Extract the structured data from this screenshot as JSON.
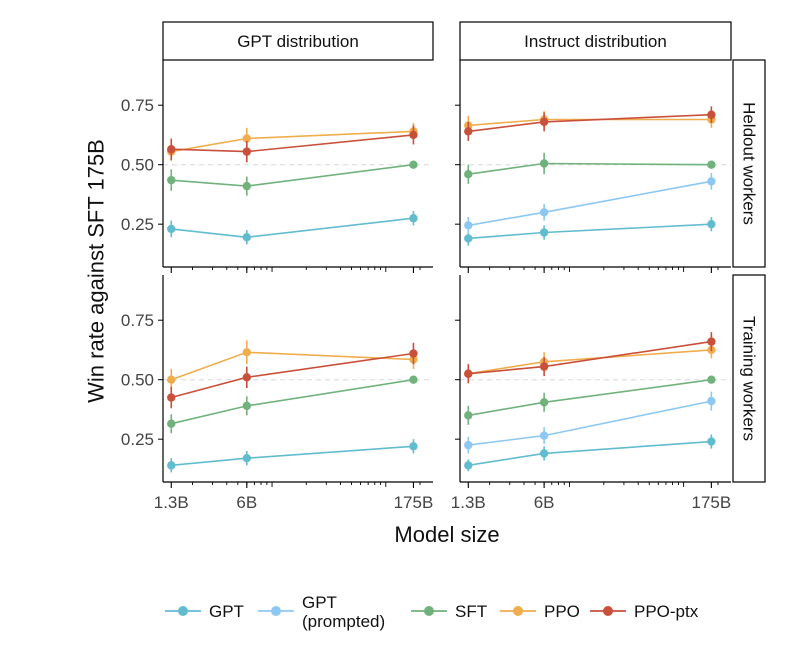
{
  "chart_data": {
    "type": "line",
    "ylabel": "Win rate against SFT 175B",
    "xlabel": "Model size",
    "x_ticks": [
      "1.3B",
      "6B",
      "175B"
    ],
    "x_values": [
      1.3,
      6,
      175
    ],
    "x_scale": "log",
    "xlim": [
      1.1,
      260
    ],
    "ylim": [
      0.07,
      0.94
    ],
    "y_ticks": [
      0.25,
      0.5,
      0.75
    ],
    "y_tick_labels": [
      "0.25",
      "0.50",
      "0.75"
    ],
    "reference_line": 0.5,
    "columns": [
      "GPT distribution",
      "Instruct distribution"
    ],
    "rows": [
      "Heldout workers",
      "Training workers"
    ],
    "legend": [
      {
        "name": "GPT",
        "color": "#62BCCF"
      },
      {
        "name": "GPT\n(prompted)",
        "color": "#8DC8F2"
      },
      {
        "name": "SFT",
        "color": "#71B27C"
      },
      {
        "name": "PPO",
        "color": "#F0AD4E"
      },
      {
        "name": "PPO-ptx",
        "color": "#C9503A"
      }
    ],
    "panels": [
      {
        "row": "Heldout workers",
        "column": "GPT distribution",
        "series": [
          {
            "name": "GPT",
            "values": [
              0.23,
              0.195,
              0.275
            ],
            "err": [
              0.035,
              0.03,
              0.03
            ]
          },
          {
            "name": "SFT",
            "values": [
              0.435,
              0.41,
              0.5
            ],
            "err": [
              0.045,
              0.04,
              0.0
            ]
          },
          {
            "name": "PPO",
            "values": [
              0.555,
              0.61,
              0.64
            ],
            "err": [
              0.04,
              0.045,
              0.035
            ]
          },
          {
            "name": "PPO-ptx",
            "values": [
              0.565,
              0.555,
              0.625
            ],
            "err": [
              0.045,
              0.045,
              0.04
            ]
          }
        ]
      },
      {
        "row": "Heldout workers",
        "column": "Instruct distribution",
        "series": [
          {
            "name": "GPT",
            "values": [
              0.19,
              0.215,
              0.25
            ],
            "err": [
              0.03,
              0.03,
              0.03
            ]
          },
          {
            "name": "GPT\n(prompted)",
            "values": [
              0.245,
              0.3,
              0.43
            ],
            "err": [
              0.035,
              0.035,
              0.035
            ]
          },
          {
            "name": "SFT",
            "values": [
              0.46,
              0.505,
              0.5
            ],
            "err": [
              0.04,
              0.045,
              0.0
            ]
          },
          {
            "name": "PPO",
            "values": [
              0.665,
              0.69,
              0.69
            ],
            "err": [
              0.04,
              0.035,
              0.035
            ]
          },
          {
            "name": "PPO-ptx",
            "values": [
              0.64,
              0.68,
              0.71
            ],
            "err": [
              0.04,
              0.04,
              0.035
            ]
          }
        ]
      },
      {
        "row": "Training workers",
        "column": "GPT distribution",
        "series": [
          {
            "name": "GPT",
            "values": [
              0.14,
              0.17,
              0.22
            ],
            "err": [
              0.03,
              0.03,
              0.03
            ]
          },
          {
            "name": "SFT",
            "values": [
              0.315,
              0.39,
              0.5
            ],
            "err": [
              0.04,
              0.04,
              0.0
            ]
          },
          {
            "name": "PPO",
            "values": [
              0.5,
              0.615,
              0.585
            ],
            "err": [
              0.045,
              0.05,
              0.04
            ]
          },
          {
            "name": "PPO-ptx",
            "values": [
              0.425,
              0.51,
              0.61
            ],
            "err": [
              0.045,
              0.045,
              0.045
            ]
          }
        ]
      },
      {
        "row": "Training workers",
        "column": "Instruct distribution",
        "series": [
          {
            "name": "GPT",
            "values": [
              0.14,
              0.19,
              0.24
            ],
            "err": [
              0.025,
              0.03,
              0.03
            ]
          },
          {
            "name": "GPT\n(prompted)",
            "values": [
              0.225,
              0.265,
              0.41
            ],
            "err": [
              0.035,
              0.035,
              0.04
            ]
          },
          {
            "name": "SFT",
            "values": [
              0.35,
              0.405,
              0.5
            ],
            "err": [
              0.04,
              0.04,
              0.0
            ]
          },
          {
            "name": "PPO",
            "values": [
              0.525,
              0.575,
              0.625
            ],
            "err": [
              0.04,
              0.04,
              0.035
            ]
          },
          {
            "name": "PPO-ptx",
            "values": [
              0.525,
              0.555,
              0.66
            ],
            "err": [
              0.04,
              0.04,
              0.04
            ]
          }
        ]
      }
    ]
  }
}
